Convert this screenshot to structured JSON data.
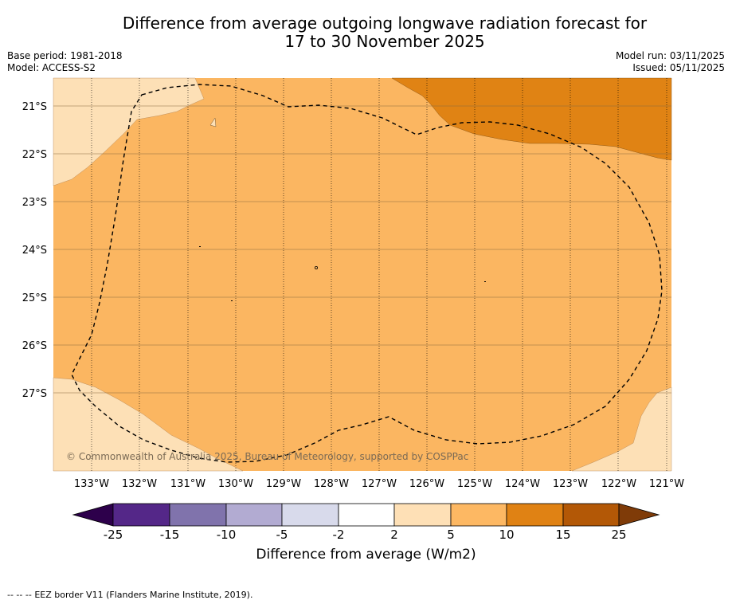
{
  "title": {
    "line1": "Difference from average outgoing longwave radiation forecast for",
    "line2": "17 to 30 November 2025"
  },
  "meta": {
    "base_period": "Base period: 1981-2018",
    "model": "Model: ACCESS-S2",
    "model_run": "Model run: 03/11/2025",
    "issued": "Issued: 05/11/2025"
  },
  "map": {
    "lat_labels": [
      "21°S",
      "22°S",
      "23°S",
      "24°S",
      "25°S",
      "26°S",
      "27°S"
    ],
    "lon_labels": [
      "133°W",
      "132°W",
      "131°W",
      "130°W",
      "129°W",
      "128°W",
      "127°W",
      "126°W",
      "125°W",
      "124°W",
      "123°W",
      "122°W",
      "121°W"
    ],
    "copyright": "© Commonwealth of Australia 2025, Bureau of Meteorology, supported by COSPPac",
    "colors": {
      "c2_5": "#fde0b6",
      "c5_10": "#fbb661",
      "c10_15": "#e08314",
      "eez_line": "#000000"
    }
  },
  "colorbar": {
    "ticks": [
      "-25",
      "-15",
      "-10",
      "-5",
      "-2",
      "2",
      "5",
      "10",
      "15",
      "25"
    ],
    "colors": [
      "#2d004b",
      "#542788",
      "#8073ac",
      "#b2abd2",
      "#d8daeb",
      "#ffffff",
      "#fee0b6",
      "#fdb863",
      "#e08214",
      "#b35806",
      "#7f3b08"
    ],
    "title": "Difference from average (W/m2)"
  },
  "footer": {
    "legend_symbol": "--  --  --",
    "legend_text": "EEZ border V11 (Flanders Marine Institute, 2019)."
  }
}
